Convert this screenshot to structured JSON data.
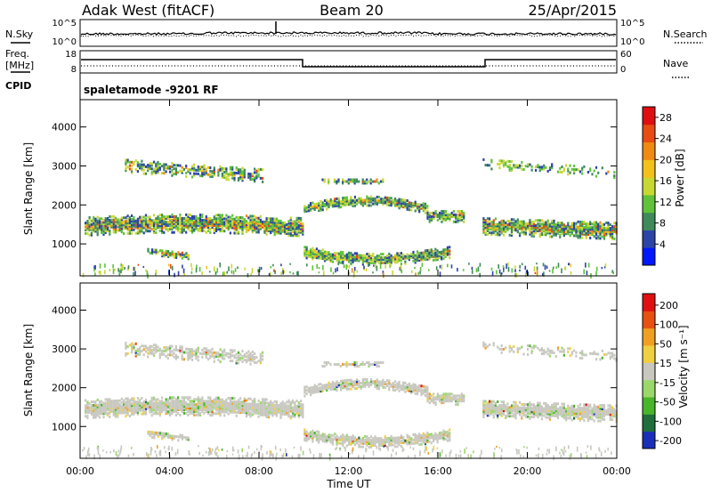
{
  "header": {
    "radar": "Adak West (fitACF)",
    "beam": "Beam 20",
    "date": "25/Apr/2015"
  },
  "noise_panel": {
    "left_label": "N.Sky",
    "right_label": "N.Search",
    "left_ticks": [
      "10^5",
      "10^0"
    ],
    "right_ticks": [
      "10^5",
      "10^0"
    ]
  },
  "freq_panel": {
    "left_label_1": "Freq.",
    "left_label_2": "[MHz]",
    "right_label": "Nave",
    "left_ticks": [
      "18",
      "8"
    ],
    "right_ticks": [
      "60",
      "0"
    ]
  },
  "cpid": {
    "label": "CPID",
    "mode": "spaletamode -9201 RF"
  },
  "colors": {
    "power": [
      "#0018ff",
      "#2c44a8",
      "#3f8a5a",
      "#5fc23a",
      "#c8d832",
      "#f2c218",
      "#f08a10",
      "#e84c12",
      "#e00e10"
    ],
    "velocity": [
      "#1a2fb8",
      "#1f6e3c",
      "#49b52a",
      "#9ad86a",
      "#c8c8c0",
      "#f0d040",
      "#f0a020",
      "#e85010",
      "#e01010"
    ]
  },
  "chart_data": [
    {
      "type": "heatmap",
      "title": "",
      "ylabel": "Slant Range [km]",
      "ylim": [
        180,
        4700
      ],
      "yticks": [
        "1000",
        "2000",
        "3000",
        "4000"
      ],
      "xlabel": "Time UT",
      "xticks": [
        "00:00",
        "04:00",
        "08:00",
        "12:00",
        "16:00",
        "20:00",
        "00:00"
      ],
      "colorbar_label": "Power [dB]",
      "colorbar_ticks": [
        "4",
        "8",
        "12",
        "16",
        "20",
        "24",
        "28"
      ],
      "colorbar_range": [
        0,
        30
      ]
    },
    {
      "type": "heatmap",
      "title": "",
      "ylabel": "Slant Range [km]",
      "ylim": [
        180,
        4700
      ],
      "yticks": [
        "1000",
        "2000",
        "3000",
        "4000"
      ],
      "xlabel": "Time UT",
      "xticks": [
        "00:00",
        "04:00",
        "08:00",
        "12:00",
        "16:00",
        "20:00",
        "00:00"
      ],
      "colorbar_label": "Velocity [m s⁻¹]",
      "colorbar_ticks": [
        "200",
        "100",
        "50",
        "15",
        "-15",
        "-50",
        "-100",
        "-200"
      ]
    }
  ]
}
